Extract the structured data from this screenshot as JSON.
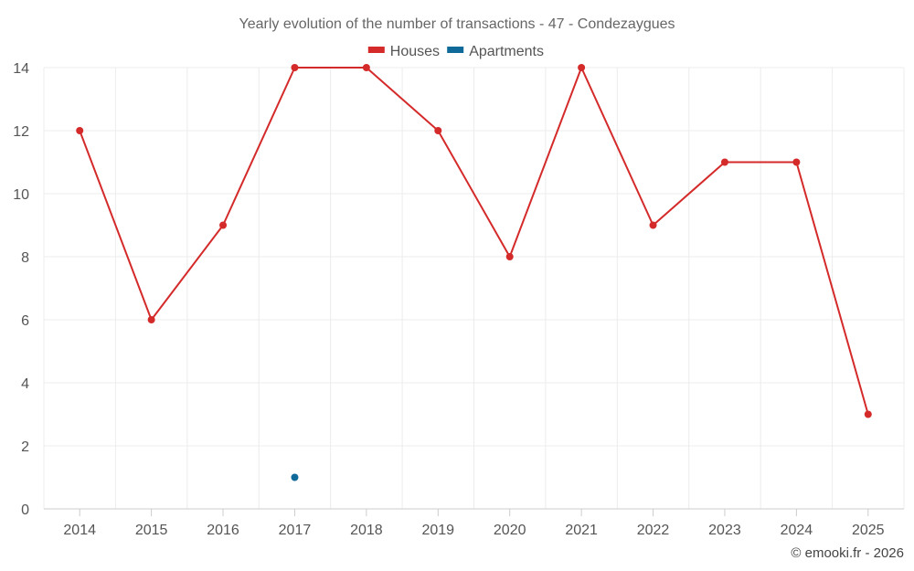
{
  "chart_data": {
    "type": "line",
    "title": "Yearly evolution of the number of transactions - 47 - Condezaygues",
    "categories": [
      "2014",
      "2015",
      "2016",
      "2017",
      "2018",
      "2019",
      "2020",
      "2021",
      "2022",
      "2023",
      "2024",
      "2025"
    ],
    "series": [
      {
        "name": "Houses",
        "color": "#d42a2a",
        "values": [
          12,
          6,
          9,
          14,
          14,
          12,
          8,
          14,
          9,
          11,
          11,
          3
        ]
      },
      {
        "name": "Apartments",
        "color": "#0f6a9a",
        "values": [
          null,
          null,
          null,
          1,
          null,
          null,
          null,
          null,
          null,
          null,
          null,
          null
        ]
      }
    ],
    "ylim": [
      0,
      14
    ],
    "yticks": [
      0,
      2,
      4,
      6,
      8,
      10,
      12,
      14
    ],
    "xlabel": "",
    "ylabel": "",
    "grid": true,
    "legend": "top-center"
  },
  "credit": "© emooki.fr - 2026"
}
